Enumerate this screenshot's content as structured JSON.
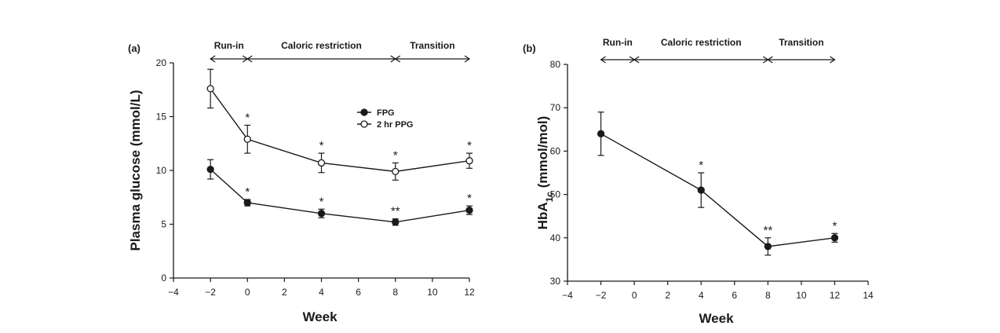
{
  "chart_data": [
    {
      "type": "line",
      "panel_label": "(a)",
      "xlabel": "Week",
      "ylabel": "Plasma glucose (mmol/L)",
      "xlim": [
        -4,
        12
      ],
      "ylim": [
        0,
        20
      ],
      "xticks": [
        -4,
        -2,
        0,
        2,
        4,
        6,
        8,
        10,
        12
      ],
      "yticks": [
        0,
        5,
        10,
        15,
        20
      ],
      "xtick_labels": [
        "−4",
        "−2",
        "0",
        "2",
        "4",
        "6",
        "8",
        "10",
        "12"
      ],
      "ytick_labels": [
        "0",
        "5",
        "10",
        "15",
        "20"
      ],
      "phases": [
        {
          "label": "Run-in",
          "start": -2,
          "end": 0
        },
        {
          "label": "Caloric restriction",
          "start": 0,
          "end": 8
        },
        {
          "label": "Transition",
          "start": 8,
          "end": 12
        }
      ],
      "legend_position": "top-middle",
      "series": [
        {
          "name": "FPG",
          "marker": "filled-circle",
          "x": [
            -2,
            0,
            4,
            8,
            12
          ],
          "y": [
            10.1,
            7.0,
            6.0,
            5.2,
            6.3
          ],
          "err": [
            0.9,
            0.3,
            0.4,
            0.3,
            0.4
          ],
          "significance": [
            "",
            "*",
            "*",
            "**",
            "*"
          ]
        },
        {
          "name": "2 hr PPG",
          "marker": "open-circle",
          "x": [
            -2,
            0,
            4,
            8,
            12
          ],
          "y": [
            17.6,
            12.9,
            10.7,
            9.9,
            10.9
          ],
          "err": [
            1.8,
            1.3,
            0.9,
            0.8,
            0.7
          ],
          "significance": [
            "",
            "*",
            "*",
            "*",
            "*"
          ]
        }
      ]
    },
    {
      "type": "line",
      "panel_label": "(b)",
      "xlabel": "Week",
      "ylabel_main": "HbA",
      "ylabel_sub": "1c",
      "ylabel_rest": " (mmol/mol)",
      "xlim": [
        -4,
        14
      ],
      "ylim": [
        30,
        80
      ],
      "xticks": [
        -4,
        -2,
        0,
        2,
        4,
        6,
        8,
        10,
        12,
        14
      ],
      "yticks": [
        30,
        40,
        50,
        60,
        70,
        80
      ],
      "xtick_labels": [
        "−4",
        "−2",
        "0",
        "2",
        "4",
        "6",
        "8",
        "10",
        "12",
        "14"
      ],
      "ytick_labels": [
        "30",
        "40",
        "50",
        "60",
        "70",
        "80"
      ],
      "phases": [
        {
          "label": "Run-in",
          "start": -2,
          "end": 0
        },
        {
          "label": "Caloric restriction",
          "start": 0,
          "end": 8
        },
        {
          "label": "Transition",
          "start": 8,
          "end": 12
        }
      ],
      "series": [
        {
          "marker": "filled-circle",
          "x": [
            -2,
            4,
            8,
            12
          ],
          "y": [
            64,
            51,
            38,
            40
          ],
          "err": [
            5,
            4,
            2,
            1
          ],
          "significance": [
            "",
            "*",
            "**",
            "*"
          ]
        }
      ]
    }
  ]
}
